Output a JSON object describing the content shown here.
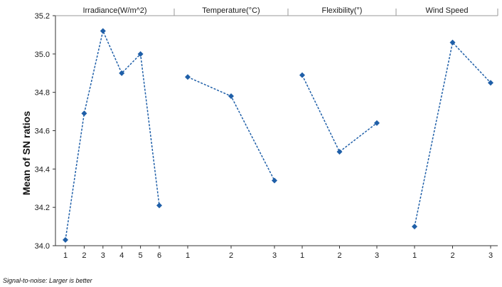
{
  "chart_data": {
    "type": "line",
    "ylabel": "Mean of SN ratios",
    "ylim": [
      34.0,
      35.2
    ],
    "yticks": [
      "34.0",
      "34.2",
      "34.4",
      "34.6",
      "34.8",
      "35.0",
      "35.2"
    ],
    "footnote": "Signal-to-noise: Larger is better",
    "grid": false,
    "line_color": "#1f5fa8",
    "panels": [
      {
        "title": "Irradiance(W/m^2)",
        "categories": [
          "1",
          "2",
          "3",
          "4",
          "5",
          "6"
        ],
        "values": [
          34.03,
          34.69,
          35.12,
          34.9,
          35.0,
          34.21
        ]
      },
      {
        "title": "Temperature(°C)",
        "categories": [
          "1",
          "2",
          "3"
        ],
        "values": [
          34.88,
          34.78,
          34.34
        ]
      },
      {
        "title": "Flexibility(°)",
        "categories": [
          "1",
          "2",
          "3"
        ],
        "values": [
          34.89,
          34.49,
          34.64
        ]
      },
      {
        "title": "Wind Speed",
        "categories": [
          "1",
          "2",
          "3"
        ],
        "values": [
          34.1,
          35.06,
          34.85
        ]
      }
    ]
  }
}
